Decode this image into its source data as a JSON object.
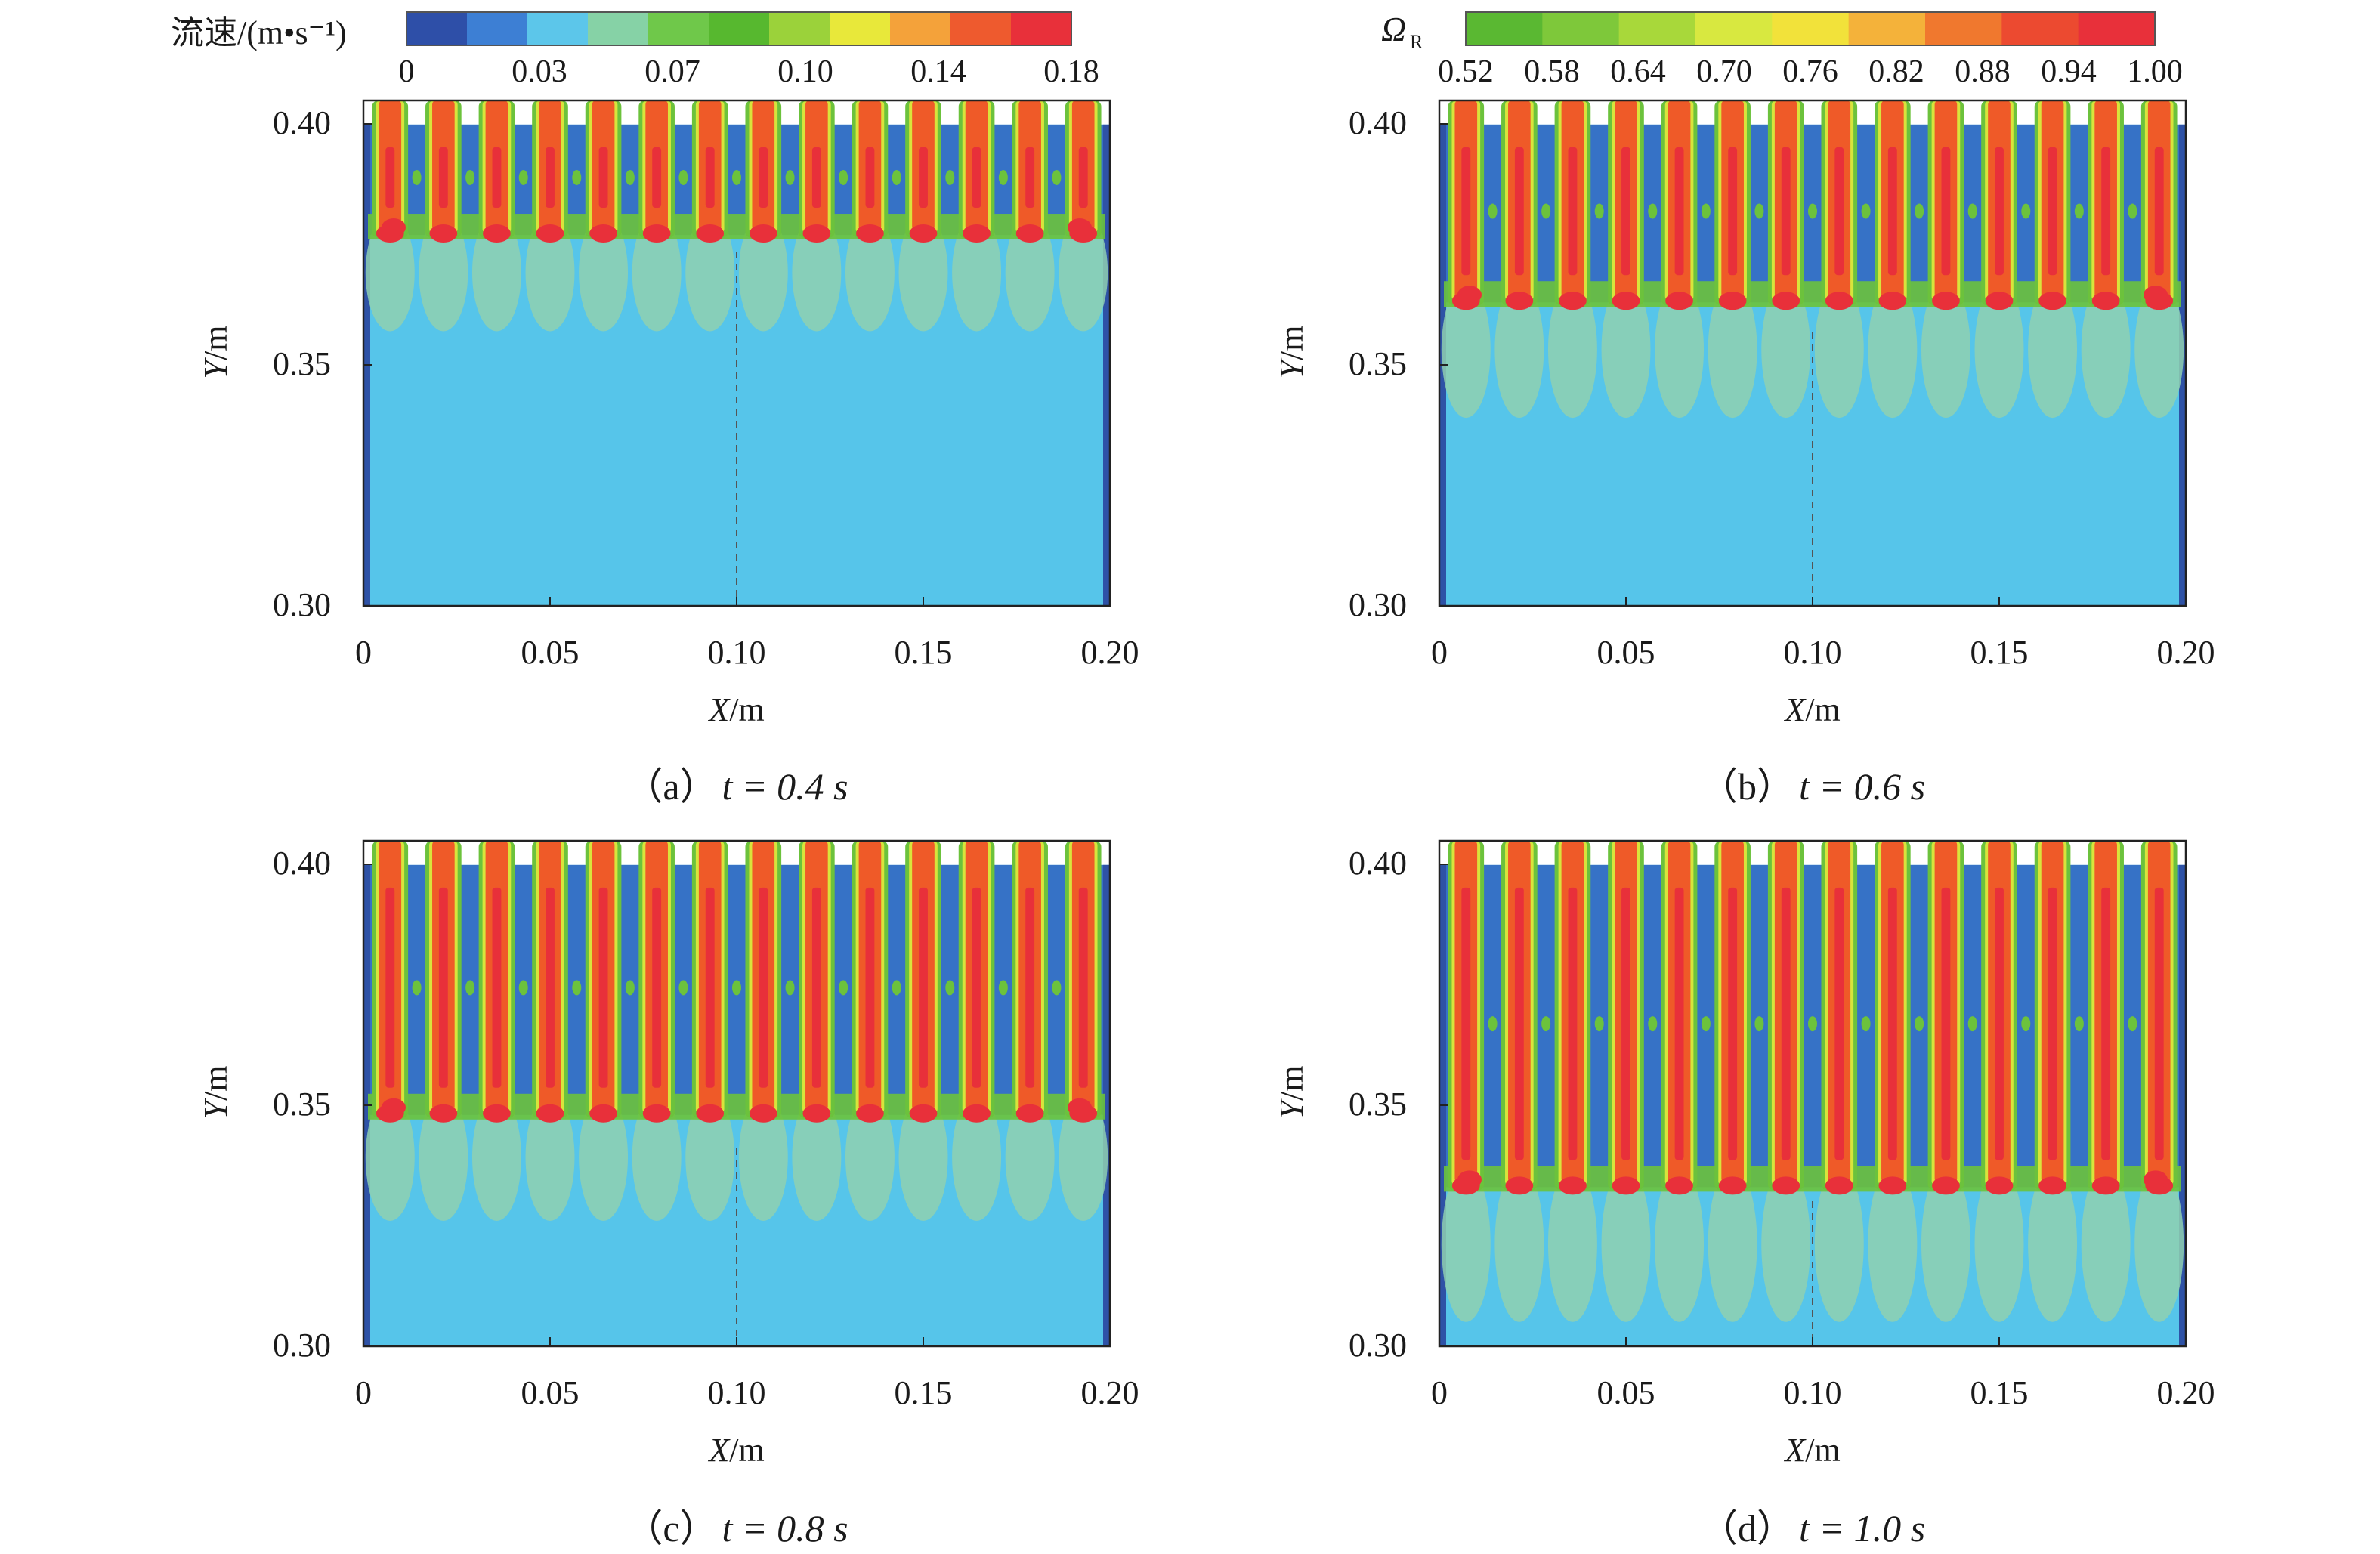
{
  "colorbars": {
    "velocity": {
      "label": "流速/(m•s⁻¹)",
      "ticks": [
        "0",
        "0.03",
        "0.07",
        "0.10",
        "0.14",
        "0.18"
      ],
      "colors": [
        "#2e4fa8",
        "#3d7fd4",
        "#5cc6ea",
        "#86d2a6",
        "#6fc84a",
        "#57b82f",
        "#9bd23a",
        "#e8e83a",
        "#f4a23a",
        "#ee5a2e",
        "#e8303a"
      ]
    },
    "omega": {
      "label_symbol": "Ω",
      "label_sub": "R",
      "ticks": [
        "0.52",
        "0.58",
        "0.64",
        "0.70",
        "0.76",
        "0.82",
        "0.88",
        "0.94",
        "1.00"
      ],
      "colors": [
        "#5ab832",
        "#7ec83a",
        "#a8d83a",
        "#d8e840",
        "#f2e23a",
        "#f4b23a",
        "#f0782e",
        "#ec4a30",
        "#e8303a"
      ]
    }
  },
  "field_colors": {
    "bulk": "#56c5ea",
    "wall": "#2e52a6",
    "jet_core": "#ef5a28",
    "jet_hot": "#e8303a",
    "mix_green": "#6cc23c",
    "mix_yellow": "#d8e43c",
    "plume": "#8fd0b0",
    "gap_blue": "#3672c6"
  },
  "chart_data": [
    {
      "type": "heatmap",
      "panel_caption": "（a）",
      "time_label": "t = 0.4 s",
      "time_s": 0.4,
      "xlabel_var": "X",
      "xlabel_unit": "/m",
      "ylabel_var": "Y",
      "ylabel_unit": "/m",
      "x_ticks": [
        "0",
        "0.05",
        "0.10",
        "0.15",
        "0.20"
      ],
      "y_ticks": [
        "0.30",
        "0.35",
        "0.40"
      ],
      "xlim": [
        0,
        0.2
      ],
      "ylim": [
        0.3,
        0.405
      ],
      "domain_top_y": 0.4,
      "jet_count": 14,
      "jet_penetration_y": 0.378,
      "plume_front_y": 0.368,
      "symmetry_line_x": 0.1
    },
    {
      "type": "heatmap",
      "panel_caption": "（b）",
      "time_label": "t = 0.6 s",
      "time_s": 0.6,
      "xlabel_var": "X",
      "xlabel_unit": "/m",
      "ylabel_var": "Y",
      "ylabel_unit": "/m",
      "x_ticks": [
        "0",
        "0.05",
        "0.10",
        "0.15",
        "0.20"
      ],
      "y_ticks": [
        "0.30",
        "0.35",
        "0.40"
      ],
      "xlim": [
        0,
        0.2
      ],
      "ylim": [
        0.3,
        0.405
      ],
      "domain_top_y": 0.4,
      "jet_count": 14,
      "jet_penetration_y": 0.364,
      "plume_front_y": 0.352,
      "symmetry_line_x": 0.1
    },
    {
      "type": "heatmap",
      "panel_caption": "（c）",
      "time_label": "t = 0.8 s",
      "time_s": 0.8,
      "xlabel_var": "X",
      "xlabel_unit": "/m",
      "ylabel_var": "Y",
      "ylabel_unit": "/m",
      "x_ticks": [
        "0",
        "0.05",
        "0.10",
        "0.15",
        "0.20"
      ],
      "y_ticks": [
        "0.30",
        "0.35",
        "0.40"
      ],
      "xlim": [
        0,
        0.2
      ],
      "ylim": [
        0.3,
        0.405
      ],
      "domain_top_y": 0.4,
      "jet_count": 14,
      "jet_penetration_y": 0.349,
      "plume_front_y": 0.338,
      "symmetry_line_x": 0.1
    },
    {
      "type": "heatmap",
      "panel_caption": "（d）",
      "time_label": "t = 1.0 s",
      "time_s": 1.0,
      "xlabel_var": "X",
      "xlabel_unit": "/m",
      "ylabel_var": "Y",
      "ylabel_unit": "/m",
      "x_ticks": [
        "0",
        "0.05",
        "0.10",
        "0.15",
        "0.20"
      ],
      "y_ticks": [
        "0.30",
        "0.35",
        "0.40"
      ],
      "xlim": [
        0,
        0.2
      ],
      "ylim": [
        0.3,
        0.405
      ],
      "domain_top_y": 0.4,
      "jet_count": 14,
      "jet_penetration_y": 0.334,
      "plume_front_y": 0.32,
      "symmetry_line_x": 0.1
    }
  ]
}
